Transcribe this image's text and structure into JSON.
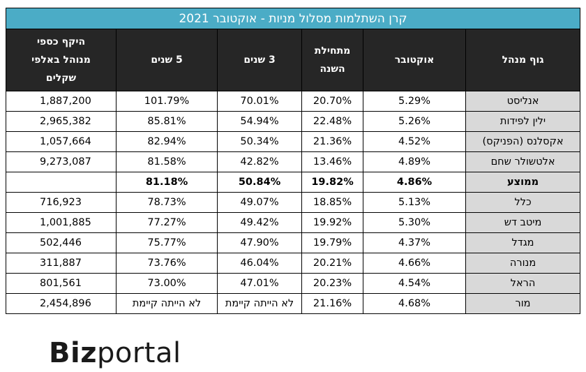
{
  "title": "קרן השתלמות מסלול מניות - אוקטובר 2021",
  "headers": {
    "manager": "גוף מנהל",
    "october": "אוקטובר",
    "ytd_line1": "מתחילת",
    "ytd_line2": "השנה",
    "three_years": "3 שנים",
    "five_years": "5 שנים",
    "aum_line1": "היקף כספי",
    "aum_line2": "מנוהל באלפי",
    "aum_line3": "שקלים"
  },
  "rows": [
    {
      "name": "אנליסט",
      "october": "5.29%",
      "ytd": "20.70%",
      "y3": "70.01%",
      "y5": "101.79%",
      "aum": "1,887,200"
    },
    {
      "name": "ילין לפידות",
      "october": "5.26%",
      "ytd": "22.48%",
      "y3": "54.94%",
      "y5": "85.81%",
      "aum": "2,965,382"
    },
    {
      "name": "אקסלנס (הפניקס)",
      "october": "4.52%",
      "ytd": "21.36%",
      "y3": "50.34%",
      "y5": "82.94%",
      "aum": "1,057,664"
    },
    {
      "name": "אלטשולר שחם",
      "october": "4.89%",
      "ytd": "13.46%",
      "y3": "42.82%",
      "y5": "81.58%",
      "aum": "9,273,087"
    },
    {
      "name": "ממוצע",
      "october": "4.86%",
      "ytd": "19.82%",
      "y3": "50.84%",
      "y5": "81.18%",
      "aum": ""
    },
    {
      "name": "כלל",
      "october": "5.13%",
      "ytd": "18.85%",
      "y3": "49.07%",
      "y5": "78.73%",
      "aum": "716,923"
    },
    {
      "name": "מיטב דש",
      "october": "5.30%",
      "ytd": "19.92%",
      "y3": "49.42%",
      "y5": "77.27%",
      "aum": "1,001,885"
    },
    {
      "name": "מגדל",
      "october": "4.37%",
      "ytd": "19.79%",
      "y3": "47.90%",
      "y5": "75.77%",
      "aum": "502,446"
    },
    {
      "name": "מנורה",
      "october": "4.66%",
      "ytd": "20.21%",
      "y3": "46.04%",
      "y5": "73.76%",
      "aum": "311,887"
    },
    {
      "name": "הראל",
      "october": "4.54%",
      "ytd": "20.23%",
      "y3": "47.01%",
      "y5": "73.00%",
      "aum": "801,561"
    },
    {
      "name": "מור",
      "october": "4.68%",
      "ytd": "21.16%",
      "y3": "לא הייתה קיימת",
      "y5": "לא הייתה קיימת",
      "aum": "2,454,896"
    }
  ],
  "logo": {
    "bold": "Biz",
    "light": "portal"
  },
  "colors": {
    "title_bg": "#4bacc6",
    "header_bg": "#262626",
    "name_bg": "#d9d9d9"
  }
}
